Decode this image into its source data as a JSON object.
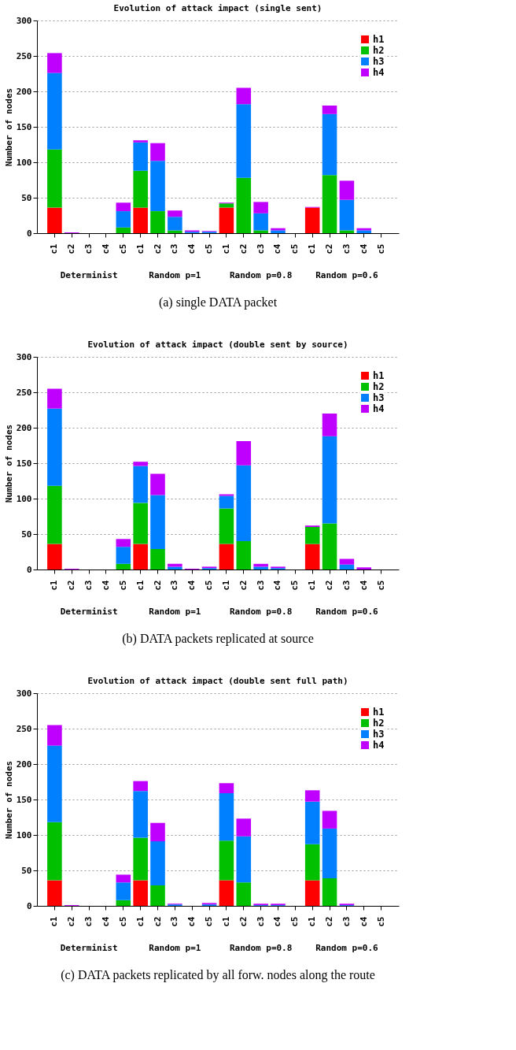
{
  "chart_data": [
    {
      "type": "bar",
      "title": "Evolution of attack impact (single sent)",
      "ylabel": "Number of nodes",
      "stacked": true,
      "grid": "y",
      "legend": "top right",
      "ylim": [
        0,
        300
      ],
      "yticks": [
        0,
        50,
        100,
        150,
        200,
        250,
        300
      ],
      "categories": [
        "c1",
        "c2",
        "c3",
        "c4",
        "c5",
        "c1",
        "c2",
        "c3",
        "c4",
        "c5",
        "c1",
        "c2",
        "c3",
        "c4",
        "c5",
        "c1",
        "c2",
        "c3",
        "c4",
        "c5"
      ],
      "series": [
        {
          "name": "h1",
          "color": "#ff0000",
          "values": [
            36,
            0,
            0,
            0,
            0,
            36,
            0,
            0,
            0,
            0,
            36,
            0,
            0,
            0,
            0,
            36,
            0,
            0,
            0,
            0
          ]
        },
        {
          "name": "h2",
          "color": "#00c000",
          "values": [
            82,
            0,
            0,
            0,
            8,
            52,
            31,
            4,
            0,
            0,
            6,
            78,
            4,
            0,
            0,
            0,
            82,
            4,
            0,
            0
          ]
        },
        {
          "name": "h3",
          "color": "#0080ff",
          "values": [
            108,
            0,
            0,
            0,
            23,
            40,
            71,
            19,
            2,
            2,
            0,
            104,
            24,
            4,
            0,
            0,
            86,
            43,
            4,
            0
          ]
        },
        {
          "name": "h4",
          "color": "#c000ff",
          "values": [
            28,
            1,
            0,
            0,
            12,
            3,
            25,
            9,
            2,
            1,
            1,
            23,
            16,
            3,
            0,
            1,
            12,
            27,
            3,
            0
          ]
        }
      ],
      "annotations": [
        "Determinist",
        "Random p=1",
        "Random p=0.8",
        "Random p=0.6",
        "(a) single DATA packet"
      ]
    },
    {
      "type": "bar",
      "title": "Evolution of attack impact (double sent by source)",
      "ylabel": "Number of nodes",
      "stacked": true,
      "grid": "y",
      "legend": "top right",
      "ylim": [
        0,
        300
      ],
      "yticks": [
        0,
        50,
        100,
        150,
        200,
        250,
        300
      ],
      "categories": [
        "c1",
        "c2",
        "c3",
        "c4",
        "c5",
        "c1",
        "c2",
        "c3",
        "c4",
        "c5",
        "c1",
        "c2",
        "c3",
        "c4",
        "c5",
        "c1",
        "c2",
        "c3",
        "c4",
        "c5"
      ],
      "series": [
        {
          "name": "h1",
          "color": "#ff0000",
          "values": [
            36,
            0,
            0,
            0,
            0,
            36,
            0,
            0,
            0,
            0,
            36,
            0,
            0,
            0,
            0,
            36,
            0,
            0,
            0,
            0
          ]
        },
        {
          "name": "h2",
          "color": "#00c000",
          "values": [
            82,
            0,
            0,
            0,
            8,
            58,
            29,
            0,
            0,
            0,
            50,
            40,
            0,
            0,
            0,
            24,
            65,
            0,
            0,
            0
          ]
        },
        {
          "name": "h3",
          "color": "#0080ff",
          "values": [
            109,
            0,
            0,
            0,
            24,
            52,
            76,
            4,
            0,
            2,
            18,
            107,
            4,
            2,
            0,
            0,
            123,
            7,
            0,
            0
          ]
        },
        {
          "name": "h4",
          "color": "#c000ff",
          "values": [
            28,
            1,
            0,
            0,
            11,
            6,
            30,
            4,
            1,
            2,
            2,
            34,
            4,
            2,
            0,
            2,
            32,
            8,
            3,
            0
          ]
        }
      ],
      "annotations": [
        "Determinist",
        "Random p=1",
        "Random p=0.8",
        "Random p=0.6",
        "(b) DATA packets replicated at source"
      ]
    },
    {
      "type": "bar",
      "title": "Evolution of attack impact (double sent full path)",
      "ylabel": "Number of nodes",
      "stacked": true,
      "grid": "y",
      "legend": "top right",
      "ylim": [
        0,
        300
      ],
      "yticks": [
        0,
        50,
        100,
        150,
        200,
        250,
        300
      ],
      "categories": [
        "c1",
        "c2",
        "c3",
        "c4",
        "c5",
        "c1",
        "c2",
        "c3",
        "c4",
        "c5",
        "c1",
        "c2",
        "c3",
        "c4",
        "c5",
        "c1",
        "c2",
        "c3",
        "c4",
        "c5"
      ],
      "series": [
        {
          "name": "h1",
          "color": "#ff0000",
          "values": [
            36,
            0,
            0,
            0,
            0,
            36,
            0,
            0,
            0,
            0,
            36,
            0,
            0,
            0,
            0,
            36,
            0,
            0,
            0,
            0
          ]
        },
        {
          "name": "h2",
          "color": "#00c000",
          "values": [
            82,
            0,
            0,
            0,
            8,
            60,
            29,
            0,
            0,
            0,
            56,
            33,
            0,
            0,
            0,
            51,
            39,
            0,
            0,
            0
          ]
        },
        {
          "name": "h3",
          "color": "#0080ff",
          "values": [
            108,
            0,
            0,
            0,
            25,
            66,
            62,
            2,
            0,
            2,
            67,
            65,
            1,
            1,
            0,
            60,
            70,
            1,
            0,
            0
          ]
        },
        {
          "name": "h4",
          "color": "#c000ff",
          "values": [
            29,
            1,
            0,
            0,
            11,
            14,
            26,
            1,
            0,
            2,
            14,
            25,
            2,
            2,
            0,
            16,
            25,
            2,
            0,
            0
          ]
        }
      ],
      "annotations": [
        "Determinist",
        "Random p=1",
        "Random p=0.8",
        "Random p=0.6",
        "(c) DATA packets replicated by all forw. nodes along the route"
      ]
    }
  ]
}
